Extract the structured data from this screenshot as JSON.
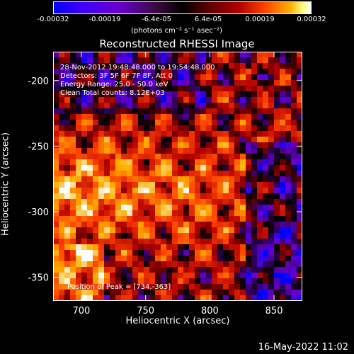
{
  "colorbar": {
    "ticks": [
      "-0.00032",
      "-0.00019",
      "-6.4e-05",
      "6.4e-05",
      "0.00019",
      "0.00032"
    ],
    "unit": "(photons cm⁻² s⁻¹ asec⁻²)",
    "colors": [
      "#0000ff",
      "#6a00d0",
      "#000000",
      "#b00000",
      "#ff4000",
      "#ffb000",
      "#ffffff"
    ]
  },
  "chart_data": {
    "type": "heatmap",
    "title": "Reconstructed RHESSI Image",
    "xlabel": "Heliocentric X (arcsec)",
    "ylabel": "Heliocentric Y (arcsec)",
    "xlim": [
      678,
      872
    ],
    "ylim": [
      -368,
      -178
    ],
    "xticks": [
      700,
      750,
      800,
      850
    ],
    "yticks": [
      -200,
      -250,
      -300,
      -350
    ],
    "clim": [
      -0.00032,
      0.00032
    ],
    "annotations": {
      "time": "28-Nov-2012 19:48:48.000 to 19:54:48.000",
      "detectors": "Detectors: 3F 5F 6F 7F 8F, Att 0",
      "energy": "Energy Range: 25.0 - 50.0 keV",
      "clean": "Clean     Total counts: 8.12E+03",
      "peak": "Position of Peak = [734,-363]"
    },
    "peak": [
      734,
      -363
    ]
  },
  "footer": {
    "timestamp": "16-May-2022 11:02"
  }
}
